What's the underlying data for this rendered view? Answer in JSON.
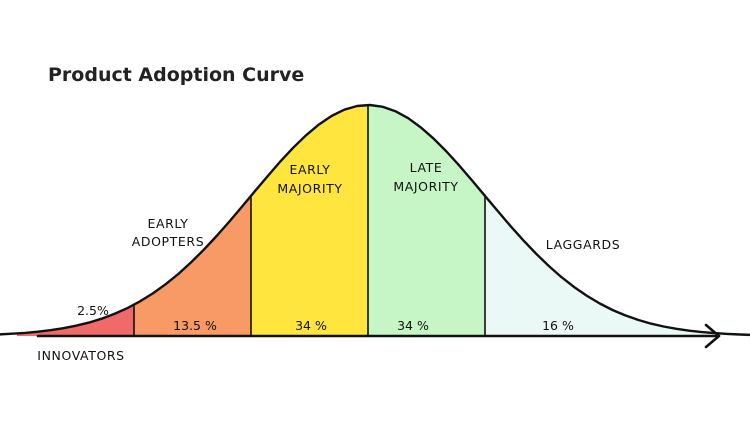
{
  "chart_data": {
    "type": "area",
    "title": "Product Adoption Curve",
    "distribution": "normal",
    "segments": [
      {
        "name": "INNOVATORS",
        "value_label": "2.5%",
        "percent": 2.5,
        "from_sd": -3.0,
        "to_sd": -2.0,
        "color": "#f06a6a"
      },
      {
        "name": "EARLY ADOPTERS",
        "name_lines": [
          "EARLY",
          "ADOPTERS"
        ],
        "value_label": "13.5 %",
        "percent": 13.5,
        "from_sd": -2.0,
        "to_sd": -1.0,
        "color": "#f89a66"
      },
      {
        "name": "EARLY MAJORITY",
        "name_lines": [
          "EARLY",
          "MAJORITY"
        ],
        "value_label": "34 %",
        "percent": 34,
        "from_sd": -1.0,
        "to_sd": 0.0,
        "color": "#ffe53d"
      },
      {
        "name": "LATE MAJORITY",
        "name_lines": [
          "LATE",
          "MAJORITY"
        ],
        "value_label": "34 %",
        "percent": 34,
        "from_sd": 0.0,
        "to_sd": 1.0,
        "color": "#c6f5c6"
      },
      {
        "name": "LAGGARDS",
        "value_label": "16 %",
        "percent": 16,
        "from_sd": 1.0,
        "to_sd": 3.4,
        "color": "#eaf9f5"
      }
    ],
    "x_axis": {
      "arrow": true,
      "labels": false
    },
    "grid": false,
    "legend": "none"
  }
}
